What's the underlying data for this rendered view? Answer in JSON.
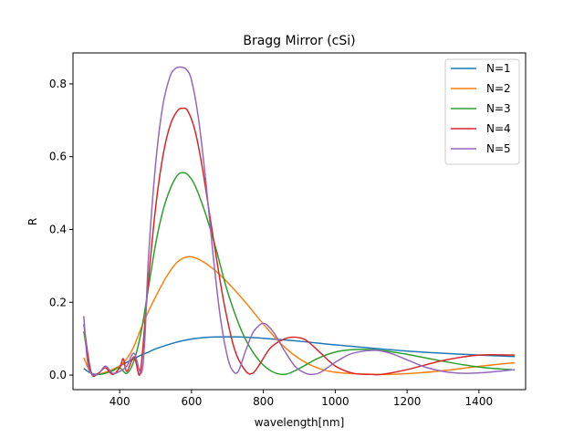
{
  "chart_data": {
    "type": "line",
    "title": "Bragg Mirror (cSi)",
    "xlabel": "wavelength[nm]",
    "ylabel": "R",
    "xlim": [
      270,
      1530
    ],
    "ylim": [
      -0.04,
      0.885
    ],
    "xticks": [
      400,
      600,
      800,
      1000,
      1200,
      1400
    ],
    "yticks": [
      0.0,
      0.2,
      0.4,
      0.6,
      0.8
    ],
    "grid": false,
    "legend_position": "upper right",
    "series": [
      {
        "name": "N=1",
        "color": "#1f77b4",
        "x": [
          300,
          320,
          340,
          360,
          380,
          400,
          420,
          440,
          460,
          480,
          500,
          550,
          600,
          650,
          700,
          750,
          800,
          900,
          1000,
          1100,
          1200,
          1300,
          1400,
          1500
        ],
        "y": [
          0.018,
          0.005,
          0.002,
          0.007,
          0.015,
          0.025,
          0.035,
          0.045,
          0.055,
          0.063,
          0.072,
          0.088,
          0.099,
          0.104,
          0.105,
          0.104,
          0.101,
          0.093,
          0.083,
          0.074,
          0.066,
          0.06,
          0.055,
          0.051
        ]
      },
      {
        "name": "N=2",
        "color": "#ff7f0e",
        "x": [
          300,
          320,
          340,
          360,
          380,
          400,
          420,
          440,
          460,
          480,
          500,
          530,
          560,
          590,
          620,
          660,
          700,
          750,
          800,
          850,
          900,
          950,
          1000,
          1100,
          1200,
          1300,
          1400,
          1500
        ],
        "y": [
          0.048,
          0.005,
          0.002,
          0.008,
          0.015,
          0.025,
          0.045,
          0.08,
          0.13,
          0.175,
          0.215,
          0.27,
          0.31,
          0.325,
          0.318,
          0.292,
          0.255,
          0.2,
          0.14,
          0.085,
          0.045,
          0.02,
          0.008,
          0.002,
          0.004,
          0.012,
          0.024,
          0.034
        ]
      },
      {
        "name": "N=3",
        "color": "#2ca02c",
        "x": [
          300,
          320,
          340,
          360,
          380,
          400,
          420,
          440,
          460,
          480,
          500,
          520,
          540,
          560,
          575,
          590,
          610,
          640,
          670,
          700,
          740,
          780,
          820,
          860,
          900,
          950,
          1000,
          1050,
          1100,
          1150,
          1200,
          1300,
          1400,
          1500
        ],
        "y": [
          0.12,
          0.01,
          0.002,
          0.005,
          0.012,
          0.02,
          0.005,
          0.04,
          0.12,
          0.24,
          0.36,
          0.45,
          0.51,
          0.548,
          0.556,
          0.55,
          0.52,
          0.44,
          0.34,
          0.23,
          0.12,
          0.05,
          0.012,
          0.002,
          0.018,
          0.045,
          0.063,
          0.07,
          0.07,
          0.065,
          0.057,
          0.038,
          0.022,
          0.014
        ]
      },
      {
        "name": "N=4",
        "color": "#d62728",
        "x": [
          300,
          320,
          340,
          360,
          380,
          400,
          410,
          420,
          440,
          455,
          465,
          480,
          500,
          520,
          540,
          560,
          575,
          590,
          610,
          630,
          660,
          690,
          720,
          750,
          770,
          790,
          820,
          860,
          890,
          920,
          960,
          1000,
          1050,
          1100,
          1130,
          1200,
          1300,
          1400,
          1500
        ],
        "y": [
          0.14,
          0.008,
          0.005,
          0.02,
          0.002,
          0.02,
          0.045,
          0.01,
          0.05,
          0.0,
          0.08,
          0.26,
          0.46,
          0.6,
          0.685,
          0.725,
          0.733,
          0.725,
          0.67,
          0.57,
          0.38,
          0.2,
          0.07,
          0.012,
          0.005,
          0.03,
          0.075,
          0.1,
          0.104,
          0.095,
          0.06,
          0.025,
          0.005,
          0.002,
          0.002,
          0.015,
          0.04,
          0.055,
          0.055
        ]
      },
      {
        "name": "N=5",
        "color": "#9467bd",
        "x": [
          300,
          310,
          320,
          340,
          360,
          380,
          400,
          420,
          440,
          460,
          470,
          480,
          500,
          520,
          540,
          555,
          570,
          585,
          600,
          620,
          640,
          660,
          680,
          700,
          715,
          730,
          750,
          770,
          790,
          800,
          810,
          830,
          860,
          890,
          920,
          940,
          960,
          1000,
          1040,
          1080,
          1110,
          1130,
          1160,
          1200,
          1250,
          1300,
          1350,
          1400,
          1450,
          1500
        ],
        "y": [
          0.162,
          0.04,
          0.005,
          0.002,
          0.025,
          0.005,
          0.01,
          0.025,
          0.06,
          0.005,
          0.1,
          0.32,
          0.58,
          0.74,
          0.82,
          0.842,
          0.846,
          0.84,
          0.81,
          0.7,
          0.53,
          0.33,
          0.16,
          0.05,
          0.012,
          0.01,
          0.065,
          0.115,
          0.138,
          0.142,
          0.138,
          0.115,
          0.065,
          0.022,
          0.004,
          0.002,
          0.008,
          0.035,
          0.057,
          0.066,
          0.068,
          0.066,
          0.058,
          0.042,
          0.022,
          0.01,
          0.005,
          0.006,
          0.01,
          0.015
        ]
      }
    ]
  }
}
